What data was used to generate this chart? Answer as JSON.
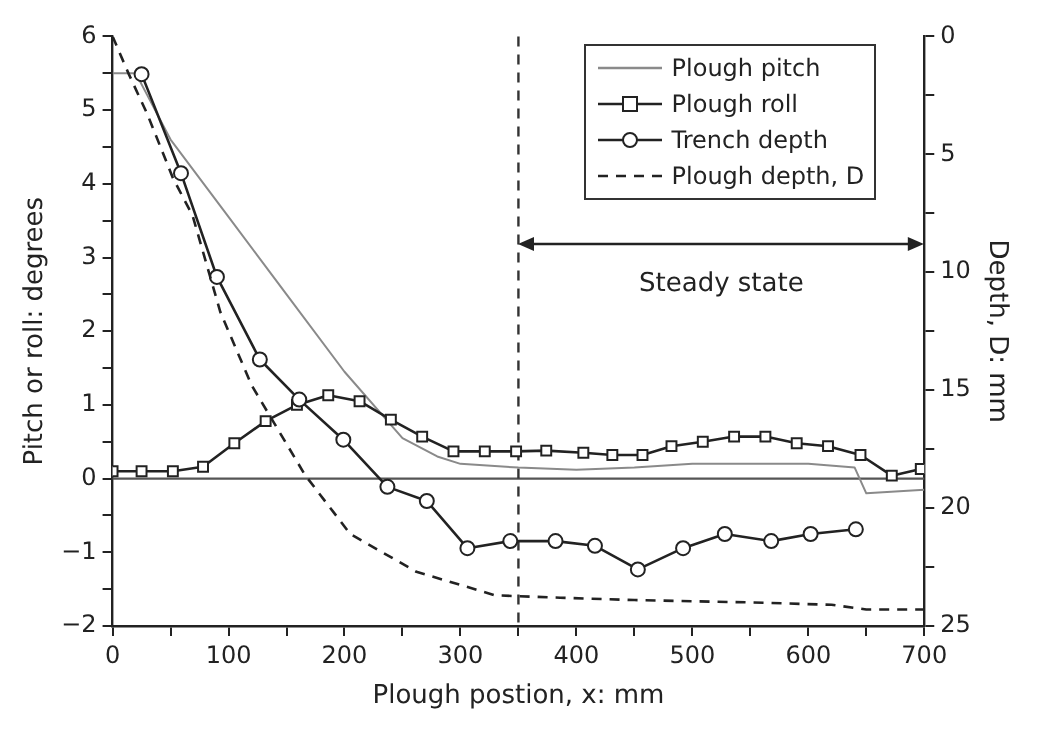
{
  "chart_data": {
    "type": "line",
    "xlabel": "Plough postion, x: mm",
    "ylabel": "Pitch or roll: degrees",
    "y2label": "Depth, D: mm",
    "xlim": [
      0,
      700
    ],
    "xticks": [
      0,
      {
        "value": 50,
        "label": null
      },
      100,
      {
        "value": 150,
        "label": null
      },
      200,
      {
        "value": 250,
        "label": null
      },
      300,
      {
        "value": 350,
        "label": null
      },
      400,
      {
        "value": 450,
        "label": null
      },
      500,
      {
        "value": 550,
        "label": null
      },
      600,
      {
        "value": 650,
        "label": null
      },
      700
    ],
    "ylim": [
      -2,
      6
    ],
    "yticks": [
      {
        "value": -2,
        "label": "−2"
      },
      {
        "value": -1.5,
        "label": null
      },
      {
        "value": -1,
        "label": "−1"
      },
      {
        "value": -0.5,
        "label": null
      },
      0,
      {
        "value": 0.5,
        "label": null
      },
      1,
      {
        "value": 1.5,
        "label": null
      },
      2,
      {
        "value": 2.5,
        "label": null
      },
      3,
      {
        "value": 3.5,
        "label": null
      },
      4,
      {
        "value": 4.5,
        "label": null
      },
      5,
      {
        "value": 5.5,
        "label": null
      },
      6
    ],
    "y2lim": [
      25,
      0
    ],
    "y2ticks": [
      0,
      {
        "value": 2.5,
        "label": null
      },
      5,
      {
        "value": 7.5,
        "label": null
      },
      10,
      {
        "value": 12.5,
        "label": null
      },
      15,
      {
        "value": 17.5,
        "label": null
      },
      20,
      {
        "value": 22.5,
        "label": null
      },
      25
    ],
    "grid": false,
    "legend": "top right",
    "series": [
      {
        "name": "Plough pitch",
        "color": "#8a8a8a",
        "marker": "none",
        "x": [
          0,
          20,
          30,
          50,
          100,
          150,
          200,
          250,
          280,
          300,
          350,
          400,
          450,
          500,
          550,
          600,
          640,
          650,
          700
        ],
        "values": [
          5.5,
          5.5,
          5.2,
          4.6,
          3.55,
          2.5,
          1.45,
          0.55,
          0.3,
          0.2,
          0.15,
          0.12,
          0.15,
          0.2,
          0.2,
          0.2,
          0.15,
          -0.2,
          -0.15
        ]
      },
      {
        "name": "Plough roll",
        "color": "#222222",
        "marker": "square",
        "x": [
          0,
          25,
          52,
          78,
          105,
          132,
          159,
          186,
          213,
          240,
          267,
          294,
          321,
          348,
          374,
          406,
          431,
          457,
          482,
          509,
          536,
          563,
          590,
          617,
          645,
          672,
          697
        ],
        "values": [
          0.1,
          0.1,
          0.1,
          0.16,
          0.48,
          0.78,
          1.0,
          1.13,
          1.05,
          0.8,
          0.57,
          0.37,
          0.37,
          0.37,
          0.38,
          0.35,
          0.32,
          0.32,
          0.44,
          0.5,
          0.57,
          0.57,
          0.48,
          0.44,
          0.32,
          0.04,
          0.13
        ]
      },
      {
        "name": "Trench depth",
        "color": "#222222",
        "marker": "circle",
        "axis": "y2",
        "x": [
          25,
          59,
          90,
          127,
          161,
          199,
          237,
          271,
          306,
          343,
          382,
          416,
          453,
          492,
          528,
          568,
          602,
          641
        ],
        "values": [
          1.6,
          5.8,
          10.2,
          13.7,
          15.4,
          17.1,
          19.1,
          19.7,
          21.7,
          21.4,
          21.4,
          21.6,
          22.6,
          21.7,
          21.1,
          21.4,
          21.1,
          20.9
        ]
      },
      {
        "name": "Plough depth, D",
        "color": "#222222",
        "marker": "none",
        "line_style": "dashed",
        "axis": "y2",
        "x": [
          0,
          14,
          30,
          52,
          69,
          93,
          120,
          166,
          205,
          262,
          330,
          386,
          450,
          550,
          620,
          650,
          700
        ],
        "values": [
          0,
          1.6,
          3.3,
          6.0,
          7.6,
          11.7,
          14.8,
          18.6,
          21.1,
          22.7,
          23.7,
          23.8,
          23.9,
          24.0,
          24.1,
          24.3,
          24.3
        ]
      }
    ],
    "ref_lines": [
      {
        "axis": "y",
        "value": 0,
        "color": "#555555"
      },
      {
        "axis": "x",
        "value": 350,
        "line_style": "dashed",
        "color": "#333333"
      }
    ],
    "annotations": [
      "Steady state"
    ]
  }
}
